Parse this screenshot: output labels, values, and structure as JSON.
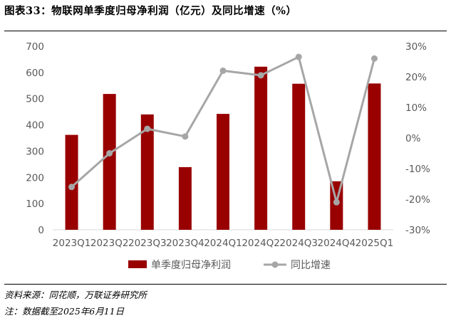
{
  "title": "图表33：物联网单季度归母净利润（亿元）及同比增速（%）",
  "source": "资料来源：同花顺，万联证券研究所",
  "note": "注：数据截至2025年6月11日",
  "chart_data": {
    "type": "bar",
    "categories": [
      "2023Q1",
      "2023Q2",
      "2023Q3",
      "2023Q4",
      "2024Q1",
      "2024Q2",
      "2024Q3",
      "2024Q4",
      "2025Q1"
    ],
    "series": [
      {
        "name": "单季度归母净利润",
        "type": "bar",
        "axis": "left",
        "values": [
          362,
          518,
          440,
          239,
          442,
          622,
          557,
          185,
          558
        ]
      },
      {
        "name": "同比增速",
        "type": "line",
        "axis": "right",
        "values": [
          -16,
          -5,
          3,
          0.5,
          22,
          20.5,
          26.5,
          -21,
          26
        ]
      }
    ],
    "y_left": {
      "min": 0,
      "max": 700,
      "step": 100,
      "ticks": [
        "0",
        "100",
        "200",
        "300",
        "400",
        "500",
        "600",
        "700"
      ]
    },
    "y_right": {
      "min": -30,
      "max": 30,
      "step": 10,
      "ticks": [
        "-30%",
        "-20%",
        "-10%",
        "0%",
        "10%",
        "20%",
        "30%"
      ]
    },
    "grid": false,
    "legend_position": "bottom",
    "colors": {
      "bar": "#990000",
      "line": "#a6a6a6",
      "axis_text": "#595959",
      "axis_line": "#d9d9d9"
    }
  }
}
